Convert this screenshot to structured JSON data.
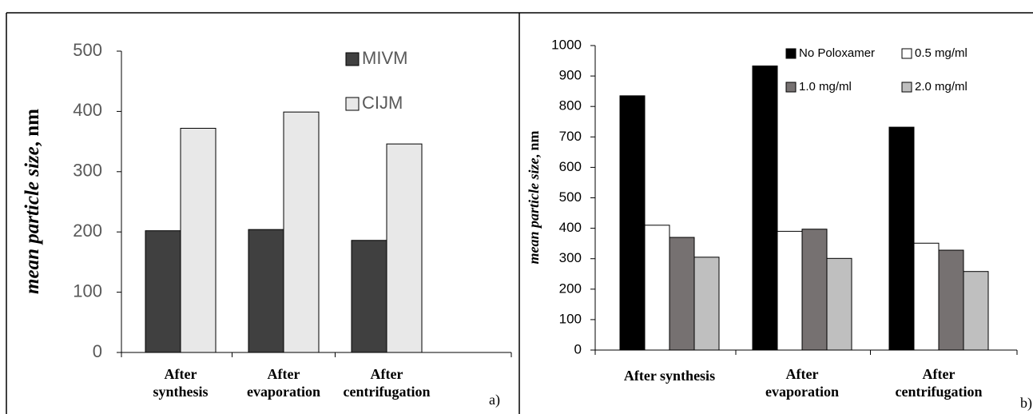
{
  "chart_data": [
    {
      "panel_label": "a)",
      "type": "bar",
      "ylabel_italic": "mean particle size",
      "ylabel_unit": ", nm",
      "ylim": [
        0,
        500
      ],
      "yticks": [
        0,
        100,
        200,
        300,
        400,
        500
      ],
      "grid": false,
      "legend_position": "top-right",
      "categories": [
        [
          "After",
          "synthesis"
        ],
        [
          "After",
          "evaporation"
        ],
        [
          "After",
          "centrifugation"
        ]
      ],
      "series": [
        {
          "name": "MIVM",
          "values": [
            202,
            204,
            186
          ],
          "color": "#404040"
        },
        {
          "name": "CIJM",
          "values": [
            372,
            399,
            346
          ],
          "color": "#e8e8e8"
        }
      ]
    },
    {
      "panel_label": "b)",
      "type": "bar",
      "ylabel_italic": "mean particle size",
      "ylabel_unit": ", nm",
      "ylim": [
        0,
        1000
      ],
      "yticks": [
        0,
        100,
        200,
        300,
        400,
        500,
        600,
        700,
        800,
        900,
        1000
      ],
      "grid": false,
      "legend_position": "top-right",
      "categories": [
        [
          "After synthesis"
        ],
        [
          "After",
          "evaporation"
        ],
        [
          "After",
          "centrifugation"
        ]
      ],
      "series": [
        {
          "name": "No Poloxamer",
          "values": [
            835,
            933,
            732
          ],
          "color": "#000000"
        },
        {
          "name": "0.5 mg/ml",
          "values": [
            410,
            390,
            351
          ],
          "color": "#ffffff"
        },
        {
          "name": "1.0 mg/ml",
          "values": [
            370,
            397,
            328
          ],
          "color": "#767171"
        },
        {
          "name": "2.0 mg/ml",
          "values": [
            305,
            301,
            258
          ],
          "color": "#bfbfbf"
        }
      ]
    }
  ]
}
